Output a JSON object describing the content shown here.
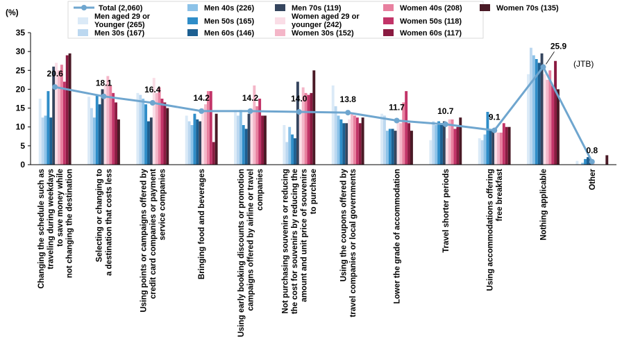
{
  "chart_data": {
    "type": "bar",
    "title": "",
    "ylabel": "(%)",
    "xlabel": "",
    "ylim": [
      0,
      35
    ],
    "yticks": [
      0,
      5,
      10,
      15,
      20,
      25,
      30,
      35
    ],
    "grid": false,
    "legend_position": "top",
    "note": "(JTB)",
    "categories": [
      "Changing the schedule such as traveling during weekdays to save money while not changing the destination",
      "Selecting or changing to a destination that costs less",
      "Using points or campaigns offered by credit card companies or payment service companies",
      "Bringing food and beverages",
      "Using early booking discounts or promotion campaigns offered by airline or travel companies",
      "Not purchasing souvenirs or reducing the cost for souvenirs by reducing the amount and unit price of souvenirs to purchase",
      "Using the coupons offered by travel companies or local governments",
      "Lower the grade of accommodation",
      "Travel shorter periods",
      "Using accommodations offering free breakfast",
      "Nothing applicable",
      "Other"
    ],
    "category_lines": [
      [
        "Changing the schedule such as",
        "traveling during weekdays",
        "to save money while",
        "not changing the destination"
      ],
      [
        "Selecting or changing to",
        "a destination that costs less"
      ],
      [
        "Using points or campaigns offered by",
        "credit card companies or payment",
        "service companies"
      ],
      [
        "Bringing food and beverages"
      ],
      [
        "Using early booking discounts or promotion",
        "campaigns offered by airline or travel",
        "companies"
      ],
      [
        "Not purchasing souvenirs or reducing",
        "the cost for souvenirs by reducing the",
        "amount and unit price of souvenirs",
        "to purchase"
      ],
      [
        "Using the coupons offered by",
        "travel companies or local governments"
      ],
      [
        "Lower the grade of accommodation"
      ],
      [
        "Travel shorter periods"
      ],
      [
        "Using accommodations offering",
        "free breakfast"
      ],
      [
        "Nothing applicable"
      ],
      [
        "Other"
      ]
    ],
    "series": [
      {
        "name": "Men aged 29 or Younger (265)",
        "legend_lines": [
          "Men aged 29 or",
          "Younger (265)"
        ],
        "color": "#dbeaf7",
        "values": [
          17.5,
          18.0,
          19.0,
          13.0,
          14.5,
          10.5,
          21.0,
          13.5,
          6.5,
          7.0,
          24.0,
          1.0
        ]
      },
      {
        "name": "Men 30s (167)",
        "legend_lines": [
          "Men 30s (167)"
        ],
        "color": "#bcd8f0",
        "values": [
          12.5,
          15.0,
          18.5,
          11.5,
          13.0,
          6.0,
          15.5,
          13.0,
          11.5,
          6.5,
          31.0,
          0.0
        ]
      },
      {
        "name": "Men 40s (226)",
        "legend_lines": [
          "Men 40s (226)"
        ],
        "color": "#8cc2e8",
        "values": [
          13.0,
          12.5,
          17.5,
          10.5,
          14.5,
          10.0,
          13.0,
          9.0,
          10.5,
          8.0,
          29.0,
          0.5
        ]
      },
      {
        "name": "Men 50s (165)",
        "legend_lines": [
          "Men 50s (165)"
        ],
        "color": "#2f8dc8",
        "values": [
          19.5,
          18.5,
          16.0,
          13.5,
          10.5,
          8.0,
          12.0,
          9.5,
          11.5,
          14.0,
          28.0,
          1.5
        ]
      },
      {
        "name": "Men 60s (146)",
        "legend_lines": [
          "Men 60s (146)"
        ],
        "color": "#1c5f91",
        "values": [
          12.5,
          16.0,
          11.5,
          12.0,
          9.5,
          7.0,
          11.0,
          9.5,
          11.0,
          9.5,
          27.0,
          2.0
        ]
      },
      {
        "name": "Men 70s (119)",
        "legend_lines": [
          "Men 70s (119)"
        ],
        "color": "#35455e",
        "values": [
          26.0,
          20.0,
          12.5,
          11.5,
          13.5,
          22.0,
          11.0,
          9.0,
          11.5,
          9.0,
          29.5,
          1.5
        ]
      },
      {
        "name": "Women aged 29 or younger (242)",
        "legend_lines": [
          "Women aged 29 or",
          "younger (242)"
        ],
        "color": "#fadde6",
        "values": [
          27.0,
          21.0,
          23.0,
          15.0,
          15.0,
          14.5,
          12.0,
          12.0,
          7.0,
          10.0,
          24.0,
          0.5
        ]
      },
      {
        "name": "Women 30s (152)",
        "legend_lines": [
          "Women 30s (152)"
        ],
        "color": "#f4b6c8",
        "values": [
          25.0,
          23.5,
          19.0,
          16.0,
          21.0,
          20.5,
          13.5,
          11.0,
          12.0,
          8.5,
          22.5,
          0.0
        ]
      },
      {
        "name": "Women 40s (208)",
        "legend_lines": [
          "Women 40s (208)"
        ],
        "color": "#e8809f",
        "values": [
          26.5,
          21.0,
          20.5,
          19.5,
          15.5,
          19.0,
          13.0,
          16.5,
          12.0,
          8.5,
          25.0,
          0.0
        ]
      },
      {
        "name": "Women 50s (118)",
        "legend_lines": [
          "Women 50s (118)"
        ],
        "color": "#c23468",
        "values": [
          22.0,
          19.0,
          17.5,
          19.5,
          17.5,
          18.5,
          12.5,
          19.5,
          9.5,
          11.0,
          21.0,
          0.0
        ]
      },
      {
        "name": "Women 60s (117)",
        "legend_lines": [
          "Women 60s (117)"
        ],
        "color": "#8a1b41",
        "values": [
          29.0,
          16.5,
          16.5,
          6.0,
          13.0,
          19.0,
          11.0,
          11.0,
          10.0,
          10.0,
          27.5,
          0.0
        ]
      },
      {
        "name": "Women 70s (135)",
        "legend_lines": [
          "Women 70s (135)"
        ],
        "color": "#4a1a26",
        "values": [
          29.5,
          12.0,
          15.0,
          13.5,
          13.0,
          25.0,
          12.5,
          9.0,
          12.5,
          10.0,
          20.0,
          2.5
        ]
      }
    ],
    "total": {
      "name": "Total (2,060)",
      "color": "#6fa6cf",
      "values": [
        20.6,
        18.1,
        16.4,
        14.2,
        14.2,
        14.0,
        13.8,
        11.7,
        10.7,
        9.1,
        25.9,
        0.8
      ],
      "labels": [
        "20.6",
        "18.1",
        "16.4",
        "14.2",
        "14.2",
        "14.0",
        "13.8",
        "11.7",
        "10.7",
        "9.1",
        "25.9",
        "0.8"
      ]
    }
  }
}
